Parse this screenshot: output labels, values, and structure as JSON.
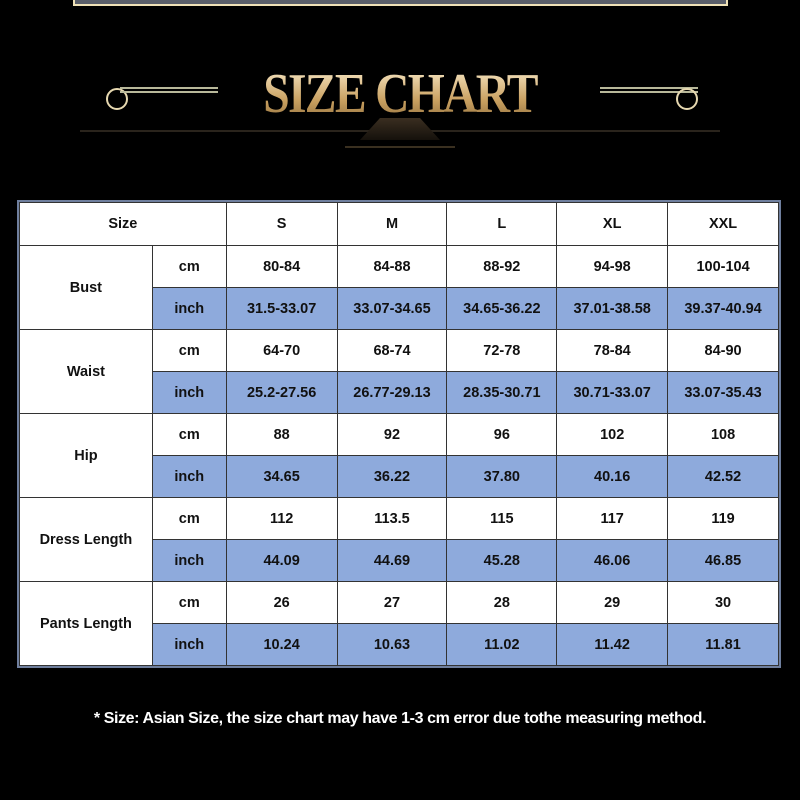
{
  "title": "SIZE CHART",
  "table": {
    "header": [
      "Size",
      "S",
      "M",
      "L",
      "XL",
      "XXL"
    ],
    "groups": [
      {
        "label": "Bust",
        "cm": [
          "80-84",
          "84-88",
          "88-92",
          "94-98",
          "100-104"
        ],
        "inch": [
          "31.5-33.07",
          "33.07-34.65",
          "34.65-36.22",
          "37.01-38.58",
          "39.37-40.94"
        ]
      },
      {
        "label": "Waist",
        "cm": [
          "64-70",
          "68-74",
          "72-78",
          "78-84",
          "84-90"
        ],
        "inch": [
          "25.2-27.56",
          "26.77-29.13",
          "28.35-30.71",
          "30.71-33.07",
          "33.07-35.43"
        ]
      },
      {
        "label": "Hip",
        "cm": [
          "88",
          "92",
          "96",
          "102",
          "108"
        ],
        "inch": [
          "34.65",
          "36.22",
          "37.80",
          "40.16",
          "42.52"
        ]
      },
      {
        "label": "Dress Length",
        "cm": [
          "112",
          "113.5",
          "115",
          "117",
          "119"
        ],
        "inch": [
          "44.09",
          "44.69",
          "45.28",
          "46.06",
          "46.85"
        ]
      },
      {
        "label": "Pants Length",
        "cm": [
          "26",
          "27",
          "28",
          "29",
          "30"
        ],
        "inch": [
          "10.24",
          "10.63",
          "11.02",
          "11.42",
          "11.81"
        ]
      }
    ],
    "units": {
      "cm": "cm",
      "inch": "inch"
    }
  },
  "note": "* Size: Asian Size, the size chart may have 1-3 cm error due tothe measuring method.",
  "colors": {
    "inch_row": "#8eaadc",
    "title_gold": "#c9a060"
  }
}
